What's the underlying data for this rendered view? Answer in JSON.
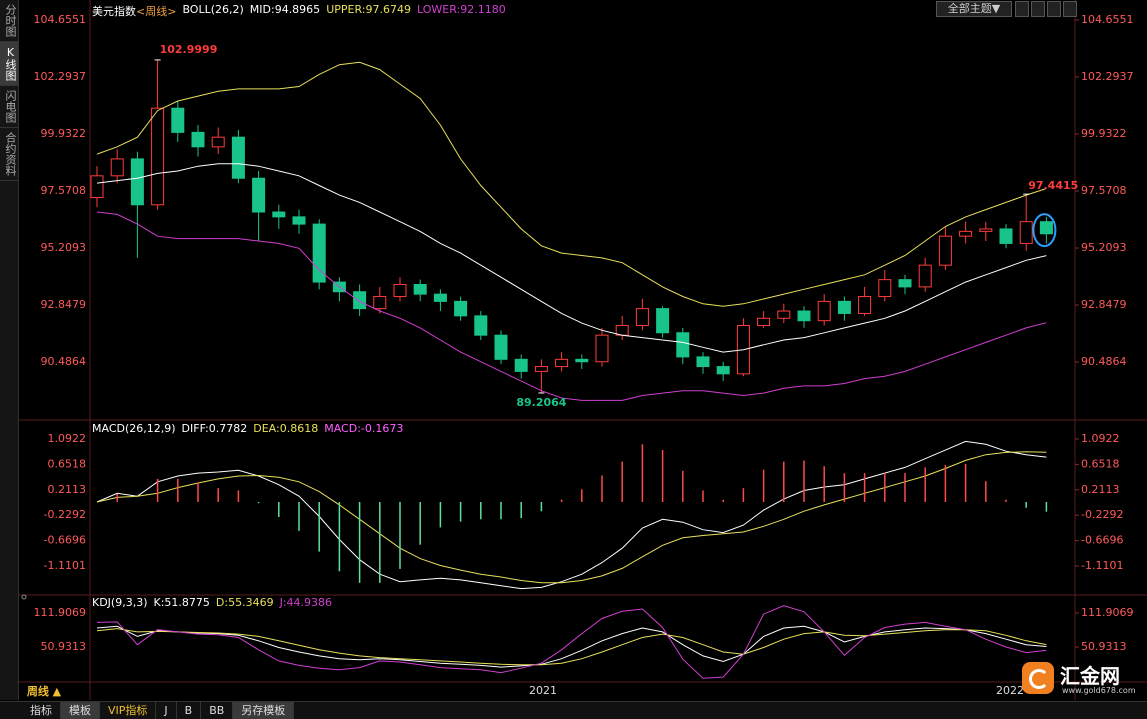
{
  "sidebar": {
    "tabs": [
      "分时图",
      "K线图",
      "闪电图",
      "合约资料"
    ]
  },
  "toolbar": {
    "theme_button": "全部主题▼"
  },
  "footer": {
    "period": "周线 ▲",
    "tabs": [
      "指标",
      "模板",
      "VIP指标",
      "J",
      "B",
      "BB",
      "另存模板"
    ]
  },
  "logo": {
    "name": "汇金网",
    "url": "www.gold678.com"
  },
  "chart_data": [
    {
      "type": "candlestick",
      "title": "美元指数",
      "period": "<周线>",
      "indicator": "BOLL(26,2)",
      "open": [
        97.3,
        98.2,
        98.9,
        97.0,
        101.0,
        100.0,
        99.4,
        99.8,
        98.1,
        96.7,
        96.5,
        96.2,
        93.8,
        93.4,
        92.7,
        93.2,
        93.7,
        93.3,
        93.0,
        92.4,
        91.6,
        90.6,
        90.1,
        90.3,
        90.6,
        90.5,
        91.6,
        92.0,
        92.7,
        91.7,
        90.7,
        90.3,
        90.0,
        92.0,
        92.3,
        92.6,
        92.2,
        93.0,
        92.5,
        93.2,
        93.9,
        93.6,
        94.5,
        95.7,
        95.9,
        96.0,
        95.4,
        96.3
      ],
      "high": [
        98.6,
        99.3,
        99.2,
        102.9999,
        101.3,
        100.3,
        100.2,
        100.1,
        98.4,
        97.0,
        96.8,
        96.4,
        94.0,
        93.7,
        93.6,
        94.0,
        93.9,
        93.5,
        93.2,
        92.6,
        91.8,
        90.8,
        90.6,
        90.9,
        90.8,
        91.9,
        92.4,
        93.1,
        92.8,
        91.9,
        90.9,
        90.5,
        92.3,
        92.6,
        92.9,
        92.8,
        93.3,
        93.2,
        93.6,
        94.3,
        94.1,
        94.8,
        96.1,
        96.3,
        96.3,
        96.2,
        97.4415,
        96.5
      ],
      "low": [
        96.9,
        97.9,
        94.8,
        96.8,
        99.6,
        99.0,
        99.1,
        97.9,
        95.5,
        96.0,
        95.8,
        93.5,
        93.0,
        92.4,
        92.5,
        93.0,
        93.0,
        92.6,
        92.2,
        91.4,
        90.4,
        89.8,
        89.2064,
        90.1,
        90.2,
        90.3,
        91.4,
        91.8,
        91.5,
        90.4,
        90.0,
        89.7,
        89.9,
        91.9,
        92.1,
        91.9,
        92.0,
        92.2,
        92.4,
        93.0,
        93.3,
        93.4,
        94.3,
        95.4,
        95.5,
        95.2,
        95.1,
        95.4
      ],
      "close": [
        98.2,
        98.9,
        97.0,
        101.0,
        100.0,
        99.4,
        99.8,
        98.1,
        96.7,
        96.5,
        96.2,
        93.8,
        93.4,
        92.7,
        93.2,
        93.7,
        93.3,
        93.0,
        92.4,
        91.6,
        90.6,
        90.1,
        90.3,
        90.6,
        90.5,
        91.6,
        92.0,
        92.7,
        91.7,
        90.7,
        90.3,
        90.0,
        92.0,
        92.3,
        92.6,
        92.2,
        93.0,
        92.5,
        93.2,
        93.9,
        93.6,
        94.5,
        95.7,
        95.9,
        96.0,
        95.4,
        96.3,
        95.8
      ],
      "up_color": "#ff3c3c",
      "down_color": "#19c48a",
      "series": [
        {
          "name": "MID:94.8965",
          "color": "#ffffff",
          "values": [
            97.9,
            98.0,
            98.1,
            98.3,
            98.4,
            98.6,
            98.7,
            98.7,
            98.6,
            98.4,
            98.2,
            97.8,
            97.4,
            97.1,
            96.7,
            96.3,
            95.9,
            95.4,
            95.0,
            94.5,
            94.0,
            93.5,
            93.0,
            92.5,
            92.1,
            91.8,
            91.6,
            91.5,
            91.4,
            91.3,
            91.1,
            90.9,
            91.0,
            91.2,
            91.4,
            91.5,
            91.7,
            91.9,
            92.1,
            92.3,
            92.6,
            93.0,
            93.4,
            93.8,
            94.1,
            94.4,
            94.7,
            94.8965
          ]
        },
        {
          "name": "UPPER:97.6749",
          "color": "#e8e05a",
          "values": [
            99.1,
            99.4,
            99.8,
            100.9,
            101.3,
            101.5,
            101.7,
            101.8,
            101.8,
            101.8,
            101.9,
            102.4,
            102.8,
            102.9,
            102.6,
            102.0,
            101.4,
            100.3,
            98.9,
            97.8,
            96.9,
            96.0,
            95.3,
            95.0,
            94.9,
            94.8,
            94.6,
            94.1,
            93.6,
            93.2,
            92.9,
            92.8,
            92.9,
            93.1,
            93.3,
            93.5,
            93.7,
            93.9,
            94.1,
            94.5,
            94.9,
            95.5,
            96.1,
            96.5,
            96.8,
            97.1,
            97.4,
            97.6749
          ]
        },
        {
          "name": "LOWER:92.1180",
          "color": "#d040d0",
          "values": [
            96.7,
            96.6,
            96.2,
            95.7,
            95.6,
            95.6,
            95.6,
            95.6,
            95.5,
            95.4,
            95.2,
            94.3,
            93.6,
            93.0,
            92.6,
            92.3,
            91.9,
            91.4,
            90.9,
            90.5,
            90.1,
            89.7,
            89.3,
            89.0,
            88.9,
            88.9,
            88.9,
            89.1,
            89.2,
            89.3,
            89.3,
            89.2,
            89.1,
            89.2,
            89.4,
            89.5,
            89.5,
            89.6,
            89.8,
            89.9,
            90.1,
            90.4,
            90.7,
            91.0,
            91.3,
            91.6,
            91.9,
            92.118
          ]
        }
      ],
      "ylim": [
        88.17,
        105.15
      ],
      "yticks": [
        90.4864,
        92.8479,
        95.2093,
        97.5708,
        99.9322,
        102.2937,
        104.6551
      ],
      "x_labels": [
        "2021",
        "2022"
      ]
    },
    {
      "type": "macd",
      "indicator": "MACD(26,12,9)",
      "series": [
        {
          "name": "DIFF:0.7782",
          "color": "#ffffff",
          "values": [
            0.0,
            0.15,
            0.1,
            0.35,
            0.45,
            0.5,
            0.52,
            0.55,
            0.45,
            0.3,
            0.1,
            -0.25,
            -0.65,
            -1.0,
            -1.25,
            -1.38,
            -1.35,
            -1.32,
            -1.35,
            -1.4,
            -1.45,
            -1.5,
            -1.48,
            -1.38,
            -1.25,
            -1.05,
            -0.8,
            -0.45,
            -0.3,
            -0.35,
            -0.48,
            -0.53,
            -0.4,
            -0.14,
            0.05,
            0.2,
            0.26,
            0.3,
            0.4,
            0.5,
            0.6,
            0.75,
            0.9,
            1.05,
            1.0,
            0.88,
            0.82,
            0.7782
          ]
        },
        {
          "name": "DEA:0.8618",
          "color": "#e8e05a",
          "values": [
            0.0,
            0.08,
            0.1,
            0.15,
            0.25,
            0.33,
            0.4,
            0.45,
            0.46,
            0.43,
            0.35,
            0.18,
            -0.05,
            -0.3,
            -0.55,
            -0.8,
            -0.98,
            -1.1,
            -1.18,
            -1.25,
            -1.3,
            -1.36,
            -1.4,
            -1.4,
            -1.36,
            -1.28,
            -1.15,
            -0.95,
            -0.75,
            -0.62,
            -0.58,
            -0.55,
            -0.52,
            -0.42,
            -0.3,
            -0.16,
            -0.05,
            0.05,
            0.15,
            0.25,
            0.35,
            0.45,
            0.58,
            0.72,
            0.82,
            0.86,
            0.87,
            0.8618
          ]
        },
        {
          "name": "MACD:-0.1673",
          "color": "#ff60ff",
          "style": "histogram",
          "up_color": "#ff4a4a",
          "down_color": "#5ee09a",
          "values": [
            0,
            0.14,
            0,
            0.4,
            0.4,
            0.34,
            0.24,
            0.2,
            -0.02,
            -0.26,
            -0.5,
            -0.86,
            -1.2,
            -1.4,
            -1.4,
            -1.16,
            -0.74,
            -0.44,
            -0.34,
            -0.3,
            -0.3,
            -0.28,
            -0.16,
            0.04,
            0.22,
            0.46,
            0.7,
            1.0,
            0.9,
            0.54,
            0.2,
            0.04,
            0.24,
            0.56,
            0.7,
            0.72,
            0.62,
            0.5,
            0.5,
            0.5,
            0.5,
            0.6,
            0.64,
            0.66,
            0.36,
            0.04,
            -0.1,
            -0.1673
          ]
        }
      ],
      "ylim": [
        -1.559,
        1.386
      ],
      "yticks": [
        -1.1101,
        -0.6696,
        -0.2292,
        0.2113,
        0.6518,
        1.0922
      ]
    },
    {
      "type": "kdj",
      "indicator": "KDJ(9,3,3)",
      "series": [
        {
          "name": "K:51.8775",
          "color": "#ffffff",
          "values": [
            85,
            88,
            70,
            80,
            78,
            76,
            75,
            72,
            62,
            50,
            42,
            35,
            30,
            28,
            30,
            28,
            25,
            22,
            20,
            18,
            15,
            17,
            20,
            30,
            45,
            62,
            75,
            85,
            78,
            55,
            35,
            25,
            38,
            70,
            85,
            88,
            78,
            60,
            70,
            78,
            82,
            85,
            84,
            82,
            75,
            65,
            55,
            51.8775
          ]
        },
        {
          "name": "D:55.3469",
          "color": "#e8e05a",
          "values": [
            80,
            84,
            78,
            79,
            78,
            77,
            76,
            74,
            70,
            62,
            54,
            46,
            40,
            35,
            32,
            30,
            28,
            26,
            24,
            22,
            20,
            19,
            19,
            22,
            30,
            42,
            55,
            68,
            74,
            68,
            55,
            42,
            38,
            50,
            65,
            75,
            78,
            72,
            71,
            74,
            77,
            80,
            82,
            82,
            80,
            72,
            62,
            55.3469
          ]
        },
        {
          "name": "J:44.9386",
          "color": "#d040d0",
          "values": [
            95,
            96,
            55,
            82,
            78,
            74,
            73,
            68,
            46,
            26,
            18,
            13,
            10,
            14,
            26,
            24,
            19,
            14,
            12,
            10,
            5,
            13,
            22,
            46,
            75,
            102,
            115,
            119,
            86,
            29,
            -5,
            -3,
            38,
            110,
            125,
            114,
            78,
            36,
            68,
            86,
            92,
            95,
            88,
            82,
            65,
            51,
            41,
            44.9386
          ]
        }
      ],
      "ylim": [
        -8.2,
        138.8
      ],
      "yticks": [
        50.9313,
        111.9069
      ]
    }
  ]
}
